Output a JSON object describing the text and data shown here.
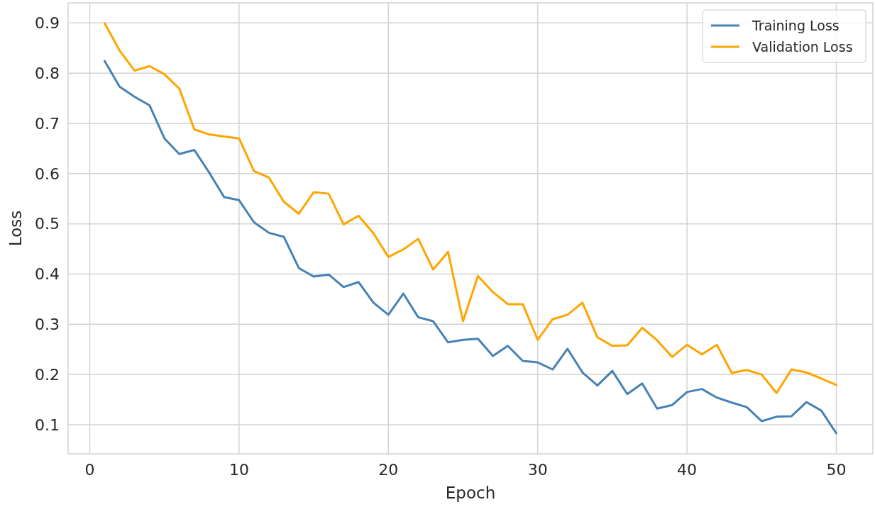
{
  "chart_data": {
    "type": "line",
    "xlabel": "Epoch",
    "ylabel": "Loss",
    "x": [
      1,
      2,
      3,
      4,
      5,
      6,
      7,
      8,
      9,
      10,
      11,
      12,
      13,
      14,
      15,
      16,
      17,
      18,
      19,
      20,
      21,
      22,
      23,
      24,
      25,
      26,
      27,
      28,
      29,
      30,
      31,
      32,
      33,
      34,
      35,
      36,
      37,
      38,
      39,
      40,
      41,
      42,
      43,
      44,
      45,
      46,
      47,
      48,
      49,
      50
    ],
    "series": [
      {
        "name": "Training Loss",
        "color": "#4682b4",
        "values": [
          0.824,
          0.773,
          0.753,
          0.736,
          0.67,
          0.639,
          0.647,
          0.602,
          0.553,
          0.547,
          0.503,
          0.482,
          0.474,
          0.412,
          0.395,
          0.399,
          0.374,
          0.384,
          0.343,
          0.319,
          0.361,
          0.314,
          0.306,
          0.264,
          0.269,
          0.271,
          0.237,
          0.257,
          0.227,
          0.224,
          0.21,
          0.251,
          0.204,
          0.178,
          0.207,
          0.161,
          0.182,
          0.132,
          0.139,
          0.165,
          0.171,
          0.154,
          0.144,
          0.135,
          0.107,
          0.116,
          0.117,
          0.145,
          0.128,
          0.083
        ]
      },
      {
        "name": "Validation Loss",
        "color": "#ffa500",
        "values": [
          0.899,
          0.845,
          0.805,
          0.814,
          0.798,
          0.769,
          0.688,
          0.678,
          0.674,
          0.67,
          0.605,
          0.592,
          0.544,
          0.52,
          0.563,
          0.56,
          0.499,
          0.516,
          0.481,
          0.434,
          0.449,
          0.47,
          0.409,
          0.444,
          0.306,
          0.396,
          0.364,
          0.34,
          0.34,
          0.269,
          0.31,
          0.319,
          0.343,
          0.274,
          0.257,
          0.258,
          0.293,
          0.268,
          0.235,
          0.259,
          0.24,
          0.259,
          0.203,
          0.209,
          0.2,
          0.163,
          0.21,
          0.204,
          0.192,
          0.179
        ]
      }
    ],
    "xlim": [
      -1.45,
      52.45
    ],
    "ylim": [
      0.042,
      0.94
    ],
    "xticks": [
      0,
      10,
      20,
      30,
      40,
      50
    ],
    "yticks": [
      0.1,
      0.2,
      0.3,
      0.4,
      0.5,
      0.6,
      0.7,
      0.8,
      0.9
    ],
    "grid": true,
    "legend": "top right",
    "marker": "none",
    "line_style": "solid"
  }
}
